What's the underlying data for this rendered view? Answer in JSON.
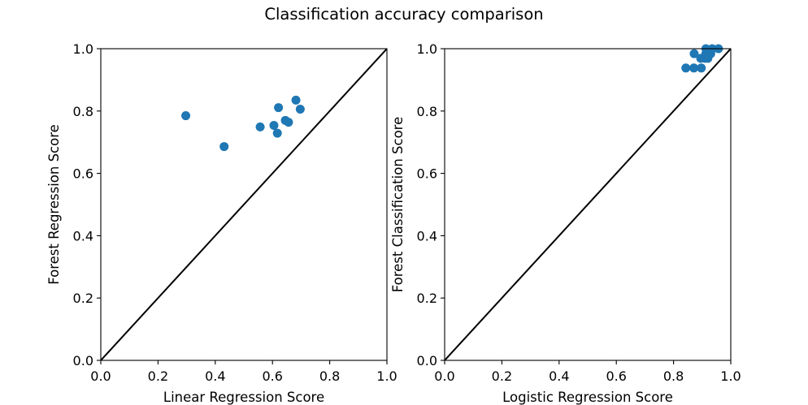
{
  "figure_title": "Classification accuracy comparison",
  "chart_data": [
    {
      "type": "scatter",
      "xlabel": "Linear Regression Score",
      "ylabel": "Forest Regression Score",
      "xlim": [
        0,
        1
      ],
      "ylim": [
        0,
        1
      ],
      "xticks": [
        "0.0",
        "0.2",
        "0.4",
        "0.6",
        "0.8",
        "1.0"
      ],
      "yticks": [
        "0.0",
        "0.2",
        "0.4",
        "0.6",
        "0.8",
        "1.0"
      ],
      "diagonal": true,
      "points": [
        {
          "x": 0.297,
          "y": 0.785
        },
        {
          "x": 0.431,
          "y": 0.686
        },
        {
          "x": 0.557,
          "y": 0.749
        },
        {
          "x": 0.605,
          "y": 0.754
        },
        {
          "x": 0.617,
          "y": 0.729
        },
        {
          "x": 0.621,
          "y": 0.811
        },
        {
          "x": 0.645,
          "y": 0.77
        },
        {
          "x": 0.656,
          "y": 0.764
        },
        {
          "x": 0.682,
          "y": 0.835
        },
        {
          "x": 0.697,
          "y": 0.806
        }
      ],
      "marker_color": "#1f77b4"
    },
    {
      "type": "scatter",
      "xlabel": "Logistic Regression Score",
      "ylabel": "Forest Classification Score",
      "xlim": [
        0,
        1
      ],
      "ylim": [
        0,
        1
      ],
      "xticks": [
        "0.0",
        "0.2",
        "0.4",
        "0.6",
        "0.8",
        "1.0"
      ],
      "yticks": [
        "0.0",
        "0.2",
        "0.4",
        "0.6",
        "0.8",
        "1.0"
      ],
      "diagonal": true,
      "points": [
        {
          "x": 0.843,
          "y": 0.938
        },
        {
          "x": 0.871,
          "y": 0.938
        },
        {
          "x": 0.897,
          "y": 0.938
        },
        {
          "x": 0.872,
          "y": 0.984
        },
        {
          "x": 0.895,
          "y": 0.969
        },
        {
          "x": 0.91,
          "y": 0.969
        },
        {
          "x": 0.92,
          "y": 0.969
        },
        {
          "x": 0.913,
          "y": 0.984
        },
        {
          "x": 0.93,
          "y": 0.984
        },
        {
          "x": 0.913,
          "y": 1.0
        },
        {
          "x": 0.935,
          "y": 1.0
        },
        {
          "x": 0.957,
          "y": 1.0
        }
      ],
      "marker_color": "#1f77b4"
    }
  ]
}
